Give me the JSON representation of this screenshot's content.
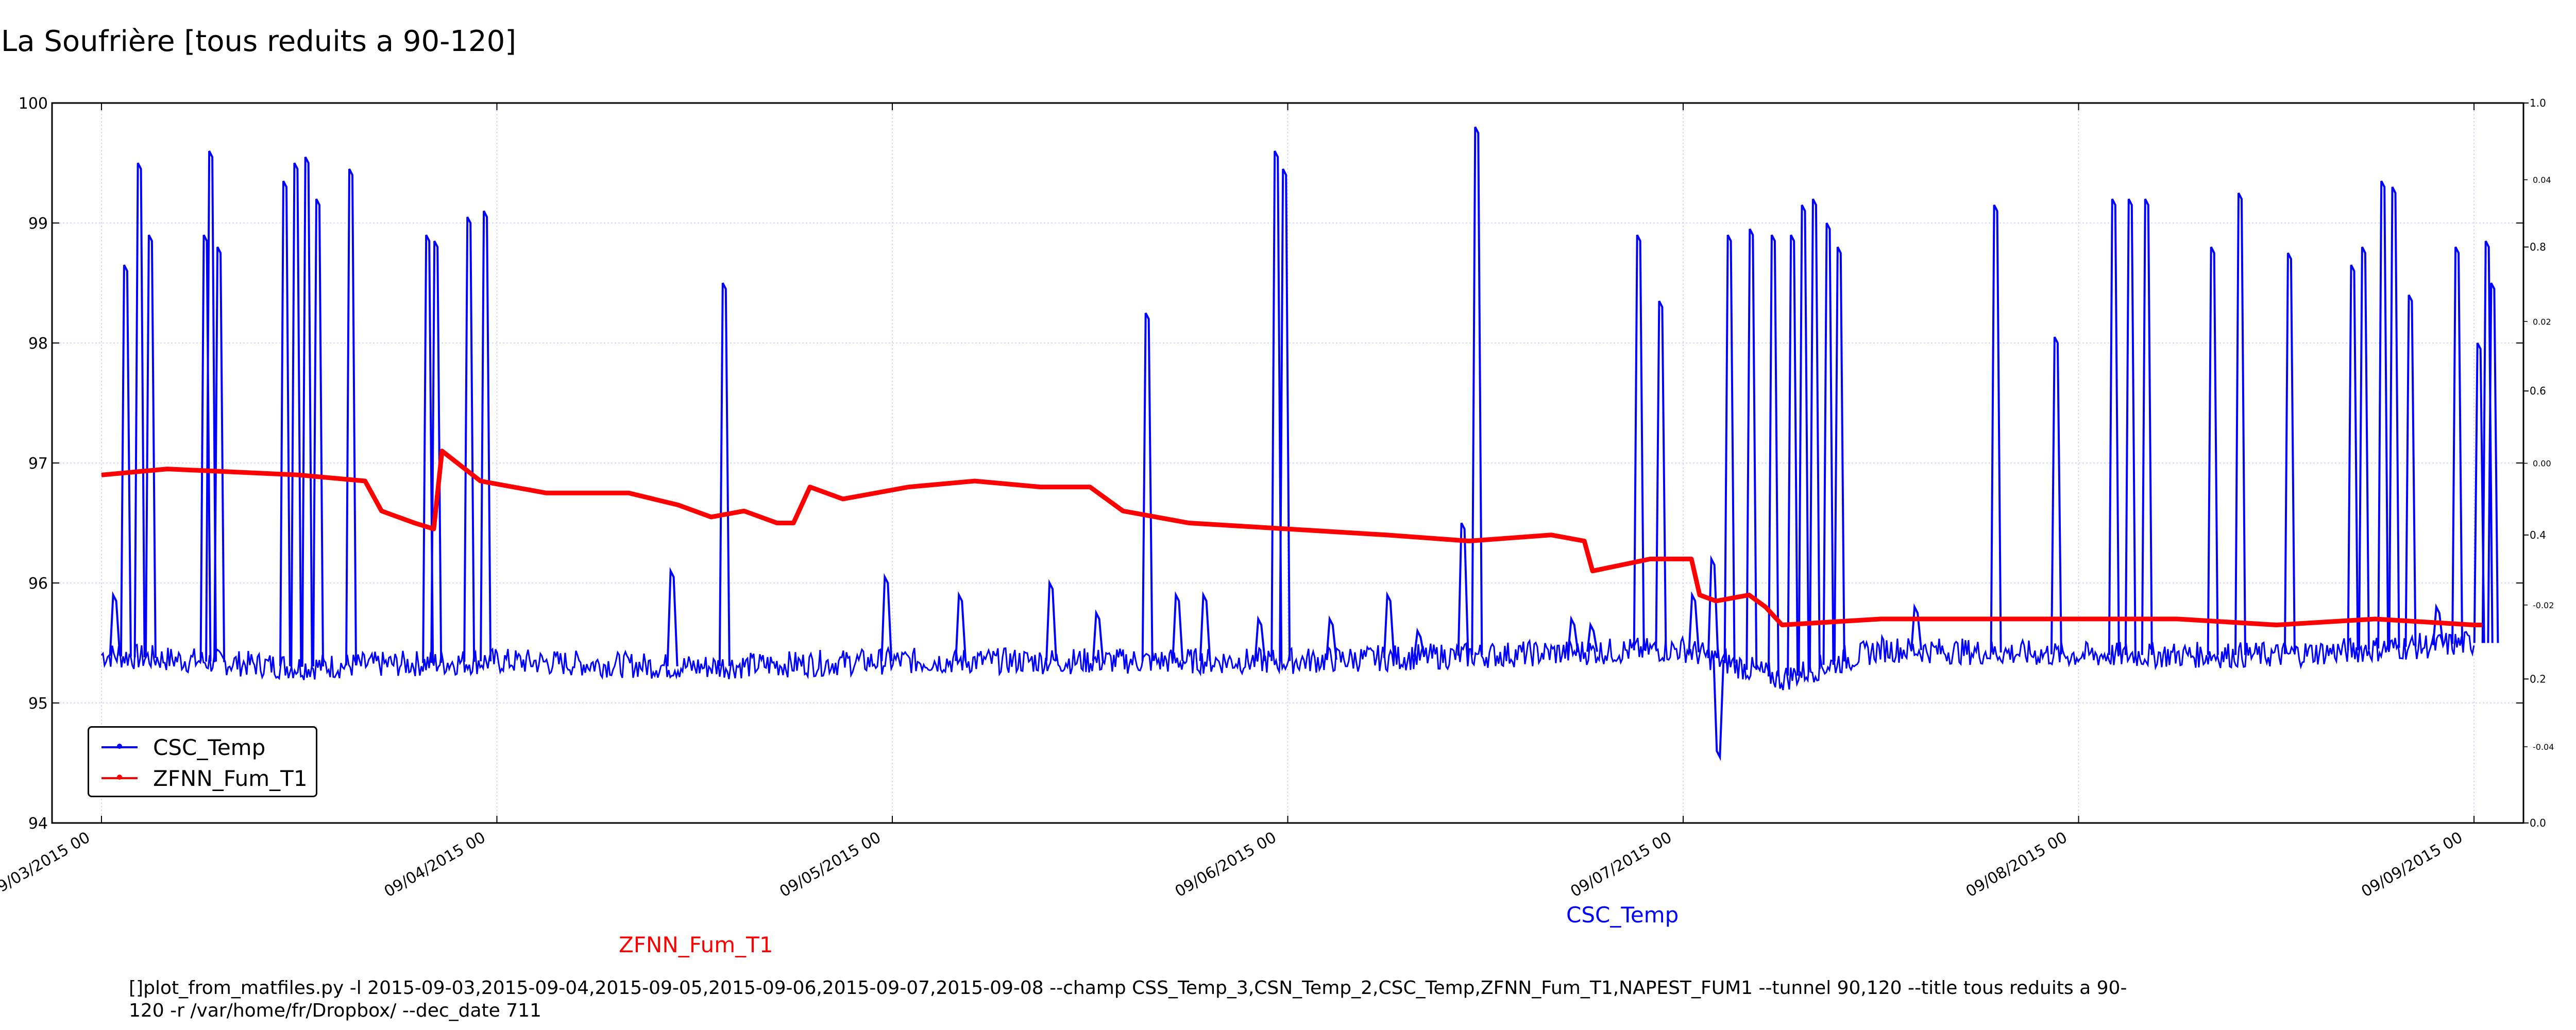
{
  "page": {
    "title": "La Soufrière [tous reduits a 90-120]",
    "label_csc": "CSC_Temp",
    "label_zfnn": "ZFNN_Fum_T1",
    "command_line": "[]plot_from_matfiles.py -l 2015-09-03,2015-09-04,2015-09-05,2015-09-06,2015-09-07,2015-09-08 --champ CSS_Temp_3,CSN_Temp_2,CSC_Temp,ZFNN_Fum_T1,NAPEST_FUM1 --tunnel 90,120 --title tous reduits a 90-120 -r /var/home/fr/Dropbox/ --dec_date 711"
  },
  "legend": [
    {
      "name": "CSC_Temp",
      "color": "#0000ff"
    },
    {
      "name": "ZFNN_Fum_T1",
      "color": "#ff0000"
    }
  ],
  "chart_data": {
    "type": "line",
    "xlim": [
      "2015-09-02 21:00",
      "2015-09-09 03:00"
    ],
    "ylim": [
      94,
      100
    ],
    "x_ticks": [
      "09/03/2015 00",
      "09/04/2015 00",
      "09/05/2015 00",
      "09/06/2015 00",
      "09/07/2015 00",
      "09/08/2015 00",
      "09/09/2015 00"
    ],
    "y_ticks": [
      94,
      95,
      96,
      97,
      98,
      99,
      100
    ],
    "right_axis_outer_ticks": [
      "0.0",
      "0.2",
      "0.4",
      "0.6",
      "0.8",
      "1.0"
    ],
    "right_axis_inner_ticks": [
      "-0.04",
      "-0.02",
      "0.00",
      "0.02",
      "0.04"
    ],
    "grid": true,
    "legend_position": "lower-left",
    "series": [
      {
        "name": "CSC_Temp",
        "color": "#0000ff",
        "baseline": [
          [
            "2015-09-03 00:00",
            95.4
          ],
          [
            "2015-09-03 12:00",
            95.3
          ],
          [
            "2015-09-04 00:00",
            95.35
          ],
          [
            "2015-09-04 12:00",
            95.3
          ],
          [
            "2015-09-05 00:00",
            95.35
          ],
          [
            "2015-09-05 12:00",
            95.35
          ],
          [
            "2015-09-06 00:00",
            95.35
          ],
          [
            "2015-09-06 12:00",
            95.4
          ],
          [
            "2015-09-07 00:00",
            95.45
          ],
          [
            "2015-09-07 06:00",
            95.2
          ],
          [
            "2015-09-07 12:00",
            95.45
          ],
          [
            "2015-09-08 00:00",
            95.4
          ],
          [
            "2015-09-08 12:00",
            95.4
          ],
          [
            "2015-09-09 00:00",
            95.5
          ]
        ],
        "spikes": [
          [
            "2015-09-03 00:50",
            95.9
          ],
          [
            "2015-09-03 01:30",
            98.65
          ],
          [
            "2015-09-03 02:20",
            99.5
          ],
          [
            "2015-09-03 03:00",
            98.9
          ],
          [
            "2015-09-03 06:20",
            98.9
          ],
          [
            "2015-09-03 06:40",
            99.6
          ],
          [
            "2015-09-03 07:10",
            98.8
          ],
          [
            "2015-09-03 11:10",
            99.35
          ],
          [
            "2015-09-03 11:50",
            99.5
          ],
          [
            "2015-09-03 12:30",
            99.55
          ],
          [
            "2015-09-03 13:10",
            99.2
          ],
          [
            "2015-09-03 15:10",
            99.45
          ],
          [
            "2015-09-03 19:50",
            98.9
          ],
          [
            "2015-09-03 20:20",
            98.85
          ],
          [
            "2015-09-03 22:20",
            99.05
          ],
          [
            "2015-09-03 23:20",
            99.1
          ],
          [
            "2015-09-04 10:40",
            96.1
          ],
          [
            "2015-09-04 13:50",
            98.5
          ],
          [
            "2015-09-04 23:40",
            96.05
          ],
          [
            "2015-09-05 04:10",
            95.9
          ],
          [
            "2015-09-05 09:40",
            96.0
          ],
          [
            "2015-09-05 12:30",
            95.75
          ],
          [
            "2015-09-05 15:30",
            98.25
          ],
          [
            "2015-09-05 17:20",
            95.9
          ],
          [
            "2015-09-05 19:00",
            95.9
          ],
          [
            "2015-09-05 22:20",
            95.7
          ],
          [
            "2015-09-05 23:20",
            99.6
          ],
          [
            "2015-09-05 23:50",
            99.45
          ],
          [
            "2015-09-06 02:40",
            95.7
          ],
          [
            "2015-09-06 06:10",
            95.9
          ],
          [
            "2015-09-06 08:00",
            95.6
          ],
          [
            "2015-09-06 10:40",
            96.5
          ],
          [
            "2015-09-06 11:30",
            99.8
          ],
          [
            "2015-09-06 17:20",
            95.7
          ],
          [
            "2015-09-06 18:30",
            95.65
          ],
          [
            "2015-09-06 21:20",
            98.9
          ],
          [
            "2015-09-06 22:40",
            98.35
          ],
          [
            "2015-09-07 00:40",
            95.9
          ],
          [
            "2015-09-07 01:50",
            96.2
          ],
          [
            "2015-09-07 02:50",
            98.9
          ],
          [
            "2015-09-07 04:10",
            98.95
          ],
          [
            "2015-09-07 05:30",
            98.9
          ],
          [
            "2015-09-07 06:40",
            98.9
          ],
          [
            "2015-09-07 07:20",
            99.15
          ],
          [
            "2015-09-07 08:00",
            99.2
          ],
          [
            "2015-09-07 08:50",
            99.0
          ],
          [
            "2015-09-07 09:30",
            98.8
          ],
          [
            "2015-09-07 14:10",
            95.8
          ],
          [
            "2015-09-07 19:00",
            99.15
          ],
          [
            "2015-09-07 22:40",
            98.05
          ],
          [
            "2015-09-08 02:10",
            99.2
          ],
          [
            "2015-09-08 03:10",
            99.2
          ],
          [
            "2015-09-08 04:10",
            99.2
          ],
          [
            "2015-09-08 08:10",
            98.8
          ],
          [
            "2015-09-08 09:50",
            99.25
          ],
          [
            "2015-09-08 12:50",
            98.75
          ],
          [
            "2015-09-08 16:40",
            98.65
          ],
          [
            "2015-09-08 17:20",
            98.8
          ],
          [
            "2015-09-08 18:30",
            99.35
          ],
          [
            "2015-09-08 19:10",
            99.3
          ],
          [
            "2015-09-08 20:10",
            98.4
          ],
          [
            "2015-09-08 21:50",
            95.8
          ],
          [
            "2015-09-08 23:00",
            98.8
          ],
          [
            "2015-09-09 00:20",
            98.0
          ],
          [
            "2015-09-09 00:50",
            98.85
          ],
          [
            "2015-09-09 01:10",
            98.5
          ],
          [
            "2015-09-07 02:10",
            94.6
          ]
        ]
      },
      {
        "name": "ZFNN_Fum_T1",
        "color": "#ff0000",
        "points": [
          [
            "2015-09-03 00:00",
            96.9
          ],
          [
            "2015-09-03 04:00",
            96.95
          ],
          [
            "2015-09-03 12:00",
            96.9
          ],
          [
            "2015-09-03 16:00",
            96.85
          ],
          [
            "2015-09-03 17:00",
            96.6
          ],
          [
            "2015-09-03 19:00",
            96.5
          ],
          [
            "2015-09-03 20:10",
            96.45
          ],
          [
            "2015-09-03 20:40",
            97.1
          ],
          [
            "2015-09-03 23:00",
            96.85
          ],
          [
            "2015-09-04 03:00",
            96.75
          ],
          [
            "2015-09-04 08:00",
            96.75
          ],
          [
            "2015-09-04 11:00",
            96.65
          ],
          [
            "2015-09-04 13:00",
            96.55
          ],
          [
            "2015-09-04 15:00",
            96.6
          ],
          [
            "2015-09-04 17:00",
            96.5
          ],
          [
            "2015-09-04 18:00",
            96.5
          ],
          [
            "2015-09-04 19:00",
            96.8
          ],
          [
            "2015-09-04 21:00",
            96.7
          ],
          [
            "2015-09-05 01:00",
            96.8
          ],
          [
            "2015-09-05 05:00",
            96.85
          ],
          [
            "2015-09-05 09:00",
            96.8
          ],
          [
            "2015-09-05 12:00",
            96.8
          ],
          [
            "2015-09-05 14:00",
            96.6
          ],
          [
            "2015-09-05 18:00",
            96.5
          ],
          [
            "2015-09-06 00:00",
            96.45
          ],
          [
            "2015-09-06 06:00",
            96.4
          ],
          [
            "2015-09-06 11:00",
            96.35
          ],
          [
            "2015-09-06 16:00",
            96.4
          ],
          [
            "2015-09-06 18:00",
            96.35
          ],
          [
            "2015-09-06 18:30",
            96.1
          ],
          [
            "2015-09-06 22:00",
            96.2
          ],
          [
            "2015-09-07 00:30",
            96.2
          ],
          [
            "2015-09-07 01:00",
            95.9
          ],
          [
            "2015-09-07 02:00",
            95.85
          ],
          [
            "2015-09-07 04:00",
            95.9
          ],
          [
            "2015-09-07 05:00",
            95.8
          ],
          [
            "2015-09-07 06:00",
            95.65
          ],
          [
            "2015-09-07 12:00",
            95.7
          ],
          [
            "2015-09-07 18:00",
            95.7
          ],
          [
            "2015-09-08 00:00",
            95.7
          ],
          [
            "2015-09-08 06:00",
            95.7
          ],
          [
            "2015-09-08 12:00",
            95.65
          ],
          [
            "2015-09-08 18:00",
            95.7
          ],
          [
            "2015-09-09 00:00",
            95.65
          ],
          [
            "2015-09-09 00:30",
            95.65
          ]
        ]
      }
    ]
  }
}
